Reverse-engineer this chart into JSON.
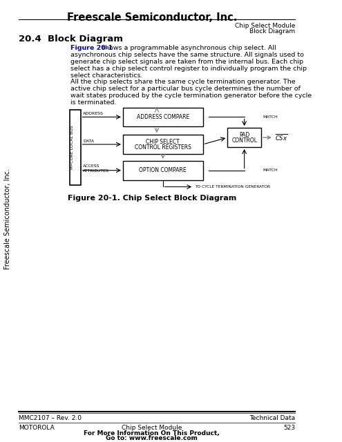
{
  "title": "Freescale Semiconductor, Inc.",
  "top_right_line1": "Chip Select Module",
  "top_right_line2": "Block Diagram",
  "section_title": "20.4  Block Diagram",
  "para1": "Figure 20-1 shows a programmable asynchronous chip select. All\nasynchronous chip selects have the same structure. All signals used to\ngenerate chip select signals are taken from the internal bus. Each chip\nselect has a chip select control register to individually program the chip\nselect characteristics.",
  "para2": "All the chip selects share the same cycle termination generator. The\nactive chip select for a particular bus cycle determines the number of\nwait states produced by the cycle termination generator before the cycle\nis terminated.",
  "fig_caption": "Figure 20-1. Chip Select Block Diagram",
  "footer_left": "MMC2107 – Rev. 2.0",
  "footer_right": "Technical Data",
  "footer_bottom_left": "MOTOROLA",
  "footer_bottom_center": "Chip Select Module",
  "footer_bottom_bold": "For More Information On This Product,\nGo to: www.freescale.com",
  "footer_bottom_right": "523",
  "sidebar_text": "Freescale Semiconductor, Inc.",
  "bg_color": "#ffffff",
  "text_color": "#000000",
  "link_color": "#0000cc"
}
